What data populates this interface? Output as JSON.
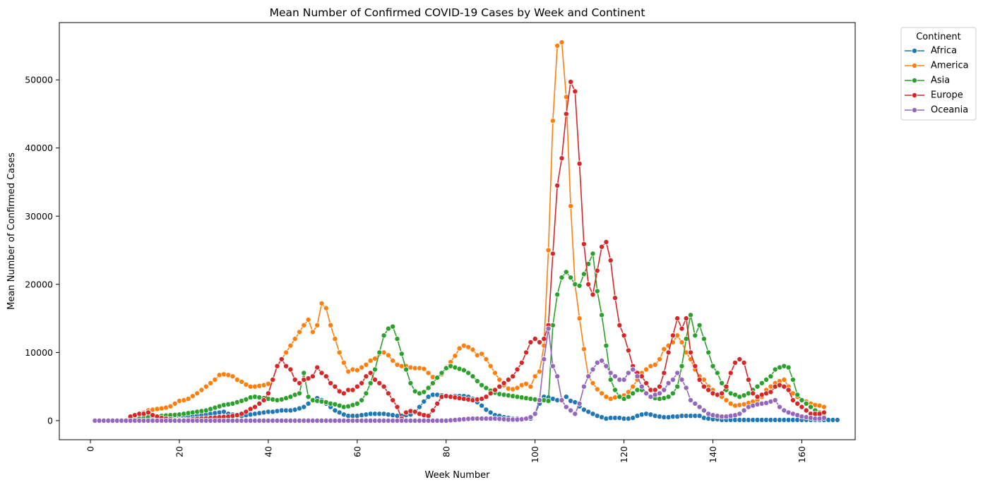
{
  "chart_data": {
    "type": "line",
    "title": "Mean Number of Confirmed COVID-19 Cases by Week and Continent",
    "xlabel": "Week Number",
    "ylabel": "Mean Number of Confirmed Cases",
    "xlim": [
      -7,
      172
    ],
    "ylim": [
      -2800,
      58400
    ],
    "x_ticks": [
      0,
      20,
      40,
      60,
      80,
      100,
      120,
      140,
      160
    ],
    "y_ticks": [
      0,
      10000,
      20000,
      30000,
      40000,
      50000
    ],
    "x_tick_rotation": 90,
    "grid": false,
    "marker": "circle",
    "legend": {
      "title": "Continent",
      "position": "outside-top-right"
    },
    "series": [
      {
        "name": "Africa",
        "color": "#1f77b4",
        "x_start": 1,
        "values": [
          0,
          0,
          0,
          0,
          0,
          0,
          0,
          0,
          20,
          40,
          60,
          100,
          150,
          250,
          300,
          350,
          400,
          450,
          500,
          550,
          600,
          650,
          700,
          750,
          800,
          900,
          1000,
          1100,
          1200,
          1300,
          1000,
          900,
          800,
          700,
          800,
          900,
          1000,
          1100,
          1200,
          1300,
          1300,
          1400,
          1500,
          1500,
          1500,
          1600,
          1800,
          2000,
          2500,
          3000,
          3300,
          3000,
          2500,
          2000,
          1500,
          1200,
          900,
          700,
          700,
          700,
          800,
          900,
          1000,
          1000,
          1000,
          1000,
          900,
          800,
          700,
          700,
          800,
          900,
          1200,
          2000,
          2800,
          3500,
          3800,
          3800,
          3700,
          3600,
          3600,
          3600,
          3600,
          3600,
          3500,
          3200,
          2700,
          2200,
          1600,
          1200,
          800,
          700,
          500,
          400,
          300,
          300,
          300,
          300,
          300,
          1000,
          2500,
          3500,
          3400,
          3200,
          3000,
          3100,
          3500,
          2900,
          2700,
          2100,
          1600,
          1300,
          1000,
          700,
          500,
          300,
          400,
          400,
          400,
          300,
          300,
          400,
          700,
          900,
          1000,
          900,
          700,
          600,
          500,
          500,
          600,
          600,
          700,
          700,
          700,
          700,
          700,
          400,
          300,
          200,
          200,
          100,
          100,
          100,
          100,
          100,
          100,
          100,
          100,
          100,
          100,
          100,
          100,
          100,
          100,
          100,
          100,
          100,
          100,
          100,
          100,
          100,
          100,
          100,
          100,
          100,
          100,
          100
        ]
      },
      {
        "name": "America",
        "color": "#ff7f0e",
        "x_start": 1,
        "values": [
          0,
          0,
          0,
          0,
          0,
          0,
          0,
          0,
          100,
          300,
          700,
          1200,
          1500,
          1600,
          1700,
          1800,
          1900,
          2100,
          2500,
          2900,
          3000,
          3200,
          3600,
          4000,
          4500,
          5000,
          5500,
          6000,
          6700,
          6800,
          6700,
          6500,
          6000,
          5700,
          5300,
          5000,
          5000,
          5100,
          5200,
          5400,
          6000,
          8000,
          9000,
          10000,
          11000,
          12000,
          13000,
          14000,
          14800,
          13000,
          14000,
          17200,
          16500,
          14000,
          12000,
          10000,
          8500,
          7200,
          7500,
          7400,
          7800,
          8200,
          8800,
          9100,
          9800,
          10000,
          9600,
          8800,
          8200,
          8000,
          8000,
          7800,
          7700,
          7700,
          7600,
          7000,
          6400,
          6300,
          6800,
          7800,
          8600,
          9500,
          10600,
          11000,
          10800,
          10400,
          9600,
          9800,
          9000,
          8000,
          7000,
          6000,
          5200,
          4700,
          4600,
          4800,
          5200,
          5400,
          5000,
          6500,
          7200,
          11000,
          25000,
          44000,
          55000,
          55500,
          47500,
          31500,
          20000,
          15000,
          10500,
          6500,
          5500,
          4600,
          4000,
          3500,
          3200,
          3400,
          3600,
          3700,
          4200,
          5000,
          6000,
          7000,
          7500,
          8000,
          8200,
          9000,
          10500,
          11000,
          11500,
          12500,
          11500,
          10000,
          9000,
          7500,
          6500,
          6000,
          5000,
          4500,
          3800,
          3500,
          3000,
          2500,
          2200,
          2300,
          2400,
          2600,
          2800,
          3000,
          3500,
          4500,
          5000,
          5500,
          5800,
          6000,
          5000,
          4000,
          3500,
          3000,
          2800,
          2500,
          2300,
          2200,
          2000
        ]
      },
      {
        "name": "Asia",
        "color": "#2ca02c",
        "x_start": 1,
        "values": [
          0,
          0,
          0,
          0,
          0,
          0,
          0,
          0,
          100,
          200,
          300,
          400,
          500,
          600,
          650,
          700,
          750,
          800,
          850,
          900,
          1000,
          1100,
          1200,
          1300,
          1400,
          1500,
          1700,
          1900,
          2100,
          2300,
          2400,
          2500,
          2700,
          2900,
          3100,
          3400,
          3500,
          3400,
          3300,
          3200,
          3100,
          3000,
          3100,
          3300,
          3500,
          3800,
          4000,
          7000,
          3500,
          3000,
          2900,
          2800,
          2700,
          2500,
          2400,
          2200,
          2000,
          2100,
          2300,
          2500,
          3000,
          4000,
          5500,
          7500,
          10000,
          12500,
          13500,
          13800,
          12000,
          9800,
          7500,
          5500,
          4300,
          4000,
          4200,
          4800,
          5500,
          6300,
          7000,
          7700,
          8000,
          7800,
          7600,
          7400,
          7000,
          6500,
          5800,
          5200,
          4800,
          4400,
          4100,
          3900,
          3800,
          3700,
          3600,
          3500,
          3400,
          3300,
          3200,
          3100,
          3000,
          3000,
          2900,
          14000,
          18500,
          21000,
          21800,
          21000,
          20000,
          19800,
          21500,
          23000,
          24500,
          19000,
          15500,
          11000,
          6000,
          4500,
          3500,
          3200,
          3500,
          4000,
          4500,
          4500,
          4000,
          3500,
          3300,
          3200,
          3300,
          3500,
          4000,
          5000,
          8000,
          12000,
          15500,
          12500,
          14000,
          12000,
          10000,
          8000,
          7000,
          5500,
          4500,
          4000,
          3800,
          3500,
          3700,
          4000,
          4500,
          5000,
          5500,
          6000,
          6500,
          7500,
          7800,
          8000,
          7800,
          6000,
          3800,
          3000,
          2500,
          2000,
          1500,
          1200,
          1000
        ]
      },
      {
        "name": "Europe",
        "color": "#d62728",
        "x_start": 1,
        "values": [
          0,
          0,
          0,
          0,
          0,
          0,
          0,
          0,
          600,
          800,
          1000,
          1000,
          1200,
          800,
          600,
          400,
          300,
          200,
          100,
          100,
          100,
          150,
          200,
          250,
          300,
          350,
          400,
          450,
          500,
          550,
          600,
          700,
          800,
          1000,
          1300,
          1700,
          2000,
          2500,
          3000,
          4000,
          6000,
          8000,
          9000,
          8000,
          7500,
          6000,
          5500,
          6000,
          6200,
          6500,
          7800,
          7000,
          6500,
          5500,
          5000,
          4300,
          4000,
          4500,
          4500,
          5000,
          5500,
          6500,
          7000,
          6000,
          5500,
          5000,
          4000,
          3000,
          2000,
          300,
          1200,
          1400,
          1300,
          1000,
          800,
          700,
          1500,
          2500,
          3500,
          3600,
          3500,
          3400,
          3300,
          3200,
          3100,
          3000,
          3100,
          3200,
          3500,
          4000,
          4500,
          5000,
          5500,
          6000,
          6500,
          7500,
          8500,
          10000,
          11500,
          12000,
          11500,
          12000,
          14000,
          24500,
          34500,
          38500,
          45000,
          49700,
          48300,
          37700,
          25900,
          20000,
          18500,
          22000,
          25500,
          26200,
          23500,
          18000,
          14000,
          12500,
          10300,
          8000,
          7000,
          6500,
          5500,
          4500,
          4500,
          5000,
          7000,
          10000,
          12500,
          15000,
          13500,
          15000,
          10000,
          8000,
          6000,
          5000,
          4500,
          4000,
          3800,
          4000,
          5000,
          7000,
          8500,
          9000,
          8500,
          6000,
          4000,
          3500,
          3800,
          4000,
          4200,
          5000,
          5200,
          5000,
          4500,
          3000,
          2500,
          2000,
          1500,
          1000,
          1000,
          1000,
          1200
        ]
      },
      {
        "name": "Oceania",
        "color": "#9467bd",
        "x_start": 1,
        "values": [
          0,
          0,
          0,
          0,
          0,
          0,
          0,
          0,
          0,
          0,
          0,
          0,
          0,
          0,
          0,
          0,
          0,
          0,
          0,
          0,
          0,
          0,
          0,
          0,
          0,
          0,
          0,
          0,
          0,
          0,
          0,
          0,
          0,
          0,
          0,
          0,
          0,
          0,
          0,
          0,
          0,
          0,
          0,
          0,
          0,
          0,
          0,
          0,
          0,
          0,
          0,
          0,
          0,
          0,
          0,
          0,
          0,
          0,
          0,
          0,
          0,
          0,
          0,
          0,
          0,
          0,
          0,
          0,
          0,
          0,
          0,
          0,
          0,
          0,
          0,
          0,
          0,
          0,
          0,
          0,
          50,
          100,
          150,
          200,
          250,
          300,
          300,
          300,
          300,
          300,
          300,
          250,
          200,
          150,
          150,
          150,
          200,
          300,
          500,
          1000,
          3000,
          9000,
          13500,
          8000,
          6500,
          3000,
          2000,
          1500,
          1000,
          2500,
          5000,
          6500,
          7500,
          8500,
          8800,
          8000,
          7000,
          6500,
          6000,
          6000,
          7000,
          7500,
          6500,
          5000,
          4000,
          3500,
          3800,
          4000,
          4500,
          5500,
          6000,
          7000,
          6000,
          4800,
          3000,
          2500,
          2000,
          1500,
          1000,
          800,
          700,
          600,
          600,
          700,
          800,
          1000,
          1500,
          2000,
          2200,
          2400,
          2500,
          2600,
          2800,
          3000,
          2000,
          1500,
          1200,
          1000,
          800,
          600,
          500,
          400,
          300,
          300,
          400
        ]
      }
    ]
  }
}
